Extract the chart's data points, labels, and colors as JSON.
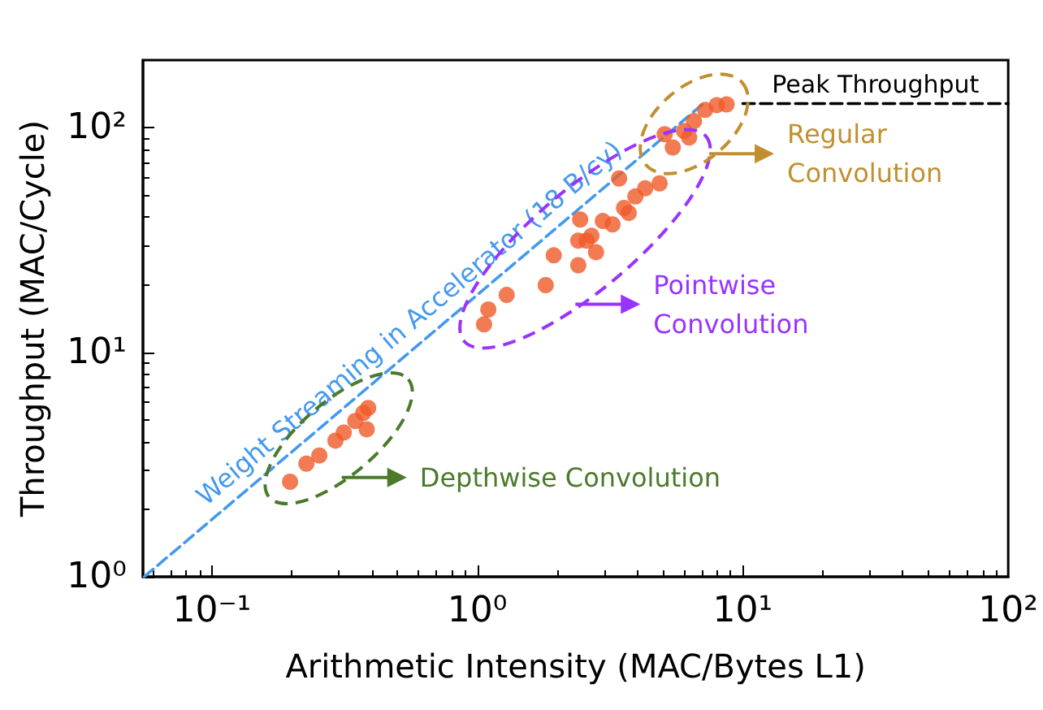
{
  "chart_data": {
    "type": "scatter",
    "xlabel": "Arithmetic Intensity (MAC/Bytes L1)",
    "ylabel": "Throughput (MAC/Cycle)",
    "log": "xy",
    "xlim": [
      0.055,
      100
    ],
    "ylim": [
      1,
      200
    ],
    "xticks": [
      {
        "value": 0.1,
        "label": "10⁻¹"
      },
      {
        "value": 1,
        "label": "10⁰"
      },
      {
        "value": 10,
        "label": "10¹"
      },
      {
        "value": 100,
        "label": "10²"
      }
    ],
    "yticks": [
      {
        "value": 1,
        "label": "10⁰"
      },
      {
        "value": 10,
        "label": "10¹"
      },
      {
        "value": 100,
        "label": "10²"
      }
    ],
    "grid": false,
    "marker": "circle",
    "series": [
      {
        "type": "line",
        "marker": "none",
        "line_style": "dashed",
        "color": "#4499ee",
        "x": [
          0.0556,
          7.1
        ],
        "values": [
          1,
          128
        ]
      },
      {
        "type": "line",
        "marker": "none",
        "line_style": "dashed",
        "color": "#000000",
        "x": [
          10,
          100
        ],
        "values": [
          128,
          128
        ]
      },
      {
        "color": "#f05a28",
        "x": [
          0.197,
          0.227,
          0.254,
          0.292,
          0.314,
          0.347,
          0.372,
          0.388,
          0.383
        ],
        "values": [
          2.65,
          3.19,
          3.47,
          4.04,
          4.39,
          4.94,
          5.37,
          5.65,
          4.54
        ]
      },
      {
        "color": "#f05a28",
        "x": [
          1.06,
          1.1,
          1.29,
          1.81,
          1.94,
          2.44,
          2.4,
          2.4,
          2.69,
          2.97,
          3.23,
          3.57,
          3.94,
          4.29,
          4.86,
          3.42,
          3.72,
          2.8,
          2.58
        ],
        "values": [
          13.3,
          15.5,
          18.0,
          19.9,
          27.0,
          39.0,
          31.4,
          24.4,
          33.0,
          38.4,
          37.1,
          43.9,
          49.4,
          53.7,
          56.5,
          59.4,
          41.7,
          27.9,
          31.4
        ]
      },
      {
        "color": "#f05a28",
        "x": [
          5.08,
          5.45,
          6.01,
          6.55,
          7.22,
          7.98,
          8.69,
          6.28
        ],
        "values": [
          93.5,
          81.7,
          96.7,
          107,
          120,
          126,
          127,
          90.4
        ]
      }
    ],
    "annotations": [
      "Weight Streaming in Accelerator (18 B/cy)",
      "Peak Throughput",
      "Depthwise Convolution",
      "Pointwise\nConvolution",
      "Regular\nConvolution"
    ]
  }
}
